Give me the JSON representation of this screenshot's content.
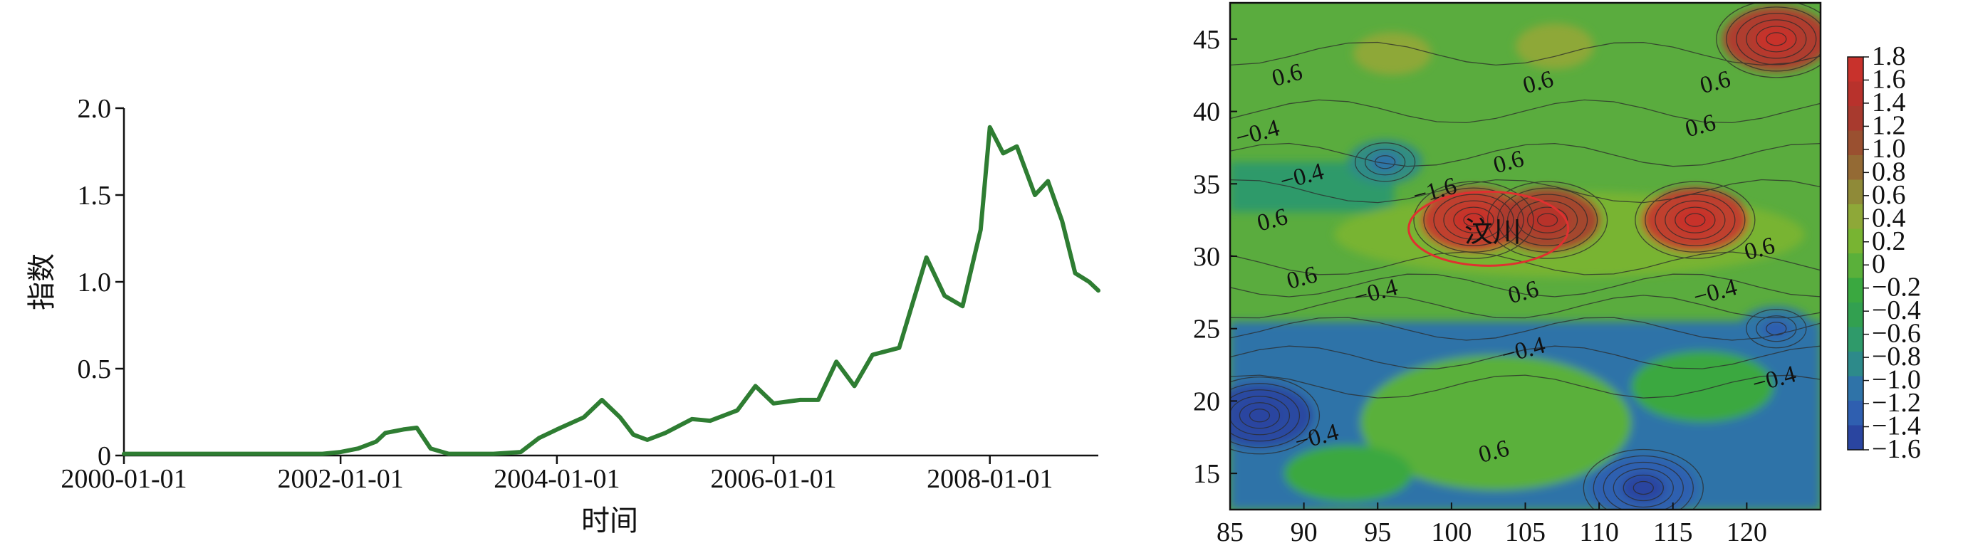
{
  "chart_data": [
    {
      "type": "line",
      "xlabel": "时间",
      "ylabel": "指数",
      "x_tick_labels": [
        "2000-01-01",
        "2002-01-01",
        "2004-01-01",
        "2006-01-01",
        "2008-01-01"
      ],
      "x_ticks": [
        "2000-01-01",
        "2002-01-01",
        "2004-01-01",
        "2006-01-01",
        "2008-01-01"
      ],
      "xlim": [
        "2000-01-01",
        "2009-01-01"
      ],
      "y_ticks": [
        0,
        0.5,
        1.0,
        1.5,
        2.0
      ],
      "y_tick_labels": [
        "0",
        "0.5",
        "1.0",
        "1.5",
        "2.0"
      ],
      "ylim": [
        0,
        2.0
      ],
      "line_color": "#2e7d32",
      "series": [
        {
          "x": [
            "2000-01-01",
            "2000-07-01",
            "2001-01-01",
            "2001-07-01",
            "2001-11-01",
            "2002-01-01",
            "2002-03-01",
            "2002-05-01",
            "2002-06-01",
            "2002-08-01",
            "2002-09-15",
            "2002-11-01",
            "2003-01-01",
            "2003-06-01",
            "2003-09-01",
            "2003-11-01",
            "2004-01-01",
            "2004-04-01",
            "2004-06-01",
            "2004-08-01",
            "2004-09-15",
            "2004-11-01",
            "2005-01-01",
            "2005-04-01",
            "2005-06-01",
            "2005-09-01",
            "2005-11-01",
            "2006-01-01",
            "2006-04-01",
            "2006-06-01",
            "2006-08-01",
            "2006-10-01",
            "2006-12-01",
            "2007-03-01",
            "2007-06-01",
            "2007-08-01",
            "2007-10-01",
            "2007-12-01",
            "2008-01-01",
            "2008-02-15",
            "2008-04-01",
            "2008-06-01",
            "2008-07-15",
            "2008-09-01",
            "2008-10-15",
            "2008-12-01",
            "2009-01-01"
          ],
          "y": [
            0.01,
            0.01,
            0.01,
            0.01,
            0.01,
            0.02,
            0.04,
            0.08,
            0.13,
            0.15,
            0.16,
            0.04,
            0.01,
            0.01,
            0.02,
            0.1,
            0.15,
            0.22,
            0.32,
            0.22,
            0.12,
            0.09,
            0.13,
            0.21,
            0.2,
            0.26,
            0.4,
            0.3,
            0.32,
            0.32,
            0.54,
            0.4,
            0.58,
            0.62,
            1.14,
            0.92,
            0.86,
            1.3,
            1.89,
            1.74,
            1.78,
            1.5,
            1.58,
            1.35,
            1.05,
            1.0,
            0.95
          ]
        }
      ]
    },
    {
      "type": "contour",
      "x_ticks": [
        85,
        90,
        95,
        100,
        105,
        110,
        115,
        120
      ],
      "y_ticks": [
        15,
        20,
        25,
        30,
        35,
        40,
        45
      ],
      "xlim": [
        85,
        125
      ],
      "ylim": [
        12.5,
        47.5
      ],
      "colorbar_ticks": [
        1.8,
        1.6,
        1.4,
        1.2,
        1.0,
        0.8,
        0.6,
        0.4,
        0.2,
        0,
        -0.2,
        -0.4,
        -0.6,
        -0.8,
        -1.0,
        -1.2,
        -1.4,
        -1.6
      ],
      "colorbar_labels": [
        "1.8",
        "1.6",
        "1.4",
        "1.2",
        "1.0",
        "0.8",
        "0.6",
        "0.4",
        "0.2",
        "0",
        "−0.2",
        "−0.4",
        "−0.6",
        "−0.8",
        "−1.0",
        "−1.2",
        "−1.4",
        "−1.6"
      ],
      "contour_labels": [
        {
          "text": "0.6",
          "x": 89,
          "y": 42
        },
        {
          "text": "0.6",
          "x": 106,
          "y": 41.5
        },
        {
          "text": "0.6",
          "x": 118,
          "y": 41.5
        },
        {
          "text": "−0.4",
          "x": 87,
          "y": 38
        },
        {
          "text": "−0.4",
          "x": 90,
          "y": 35
        },
        {
          "text": "0.6",
          "x": 104,
          "y": 36
        },
        {
          "text": "0.6",
          "x": 117,
          "y": 38.5
        },
        {
          "text": "0.6",
          "x": 88,
          "y": 32
        },
        {
          "text": "−1.6",
          "x": 99,
          "y": 34
        },
        {
          "text": "0.6",
          "x": 90,
          "y": 28
        },
        {
          "text": "−0.4",
          "x": 95,
          "y": 27
        },
        {
          "text": "0.6",
          "x": 105,
          "y": 27
        },
        {
          "text": "−0.4",
          "x": 118,
          "y": 27
        },
        {
          "text": "0.6",
          "x": 121,
          "y": 30
        },
        {
          "text": "−0.4",
          "x": 105,
          "y": 23
        },
        {
          "text": "−0.4",
          "x": 122,
          "y": 21
        },
        {
          "text": "−0.4",
          "x": 91,
          "y": 17
        },
        {
          "text": "0.6",
          "x": 103,
          "y": 16
        }
      ],
      "annotation": {
        "text": "汶川",
        "x": 102,
        "y": 32.5,
        "ellipse_color": "#e03030"
      },
      "hotspots": [
        {
          "x": 101.5,
          "y": 32.5,
          "value": 1.8
        },
        {
          "x": 116.5,
          "y": 32.5,
          "value": 1.7
        },
        {
          "x": 122,
          "y": 45,
          "value": 1.6
        },
        {
          "x": 106.5,
          "y": 32.5,
          "value": 1.3
        },
        {
          "x": 95.5,
          "y": 36.5,
          "value": -0.9
        },
        {
          "x": 122,
          "y": 25,
          "value": -1.1
        },
        {
          "x": 87,
          "y": 19,
          "value": -1.5
        },
        {
          "x": 113,
          "y": 14,
          "value": -1.4
        }
      ],
      "palette": [
        "#2a45a0",
        "#2f5fb0",
        "#2f73a8",
        "#2d8a8a",
        "#2f9a6a",
        "#32a050",
        "#3aa840",
        "#5ab03a",
        "#78b432",
        "#8ea838",
        "#8f8a38",
        "#946a34",
        "#9a5030",
        "#a83a2e",
        "#b8322c",
        "#c8322c"
      ]
    }
  ]
}
